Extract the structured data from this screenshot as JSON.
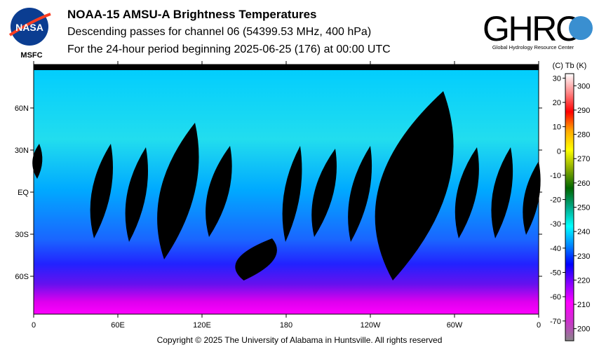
{
  "header": {
    "title": "NOAA-15 AMSU-A Brightness Temperatures",
    "subtitle1": "Descending passes for channel 06 (54399.53 MHz, 400 hPa)",
    "subtitle2": "For the 24-hour period beginning 2025-06-25 (176) at 00:00 UTC"
  },
  "logos": {
    "left": "NASA",
    "left_sub": "MSFC",
    "right": "GHRC",
    "right_sub": "Global Hydrology Resource Center"
  },
  "footer": {
    "copyright": "Copyright © 2025 The University of Alabama in Huntsville.  All rights reserved"
  },
  "chart_data": {
    "type": "heatmap",
    "title": "NOAA-15 AMSU-A Brightness Temperatures",
    "x_ticks": [
      "0",
      "60E",
      "120E",
      "180",
      "120W",
      "60W",
      "0"
    ],
    "y_ticks": [
      "60N",
      "30N",
      "EQ",
      "30S",
      "60S"
    ],
    "colorbar": {
      "label": "(C)  Tb  (K)",
      "celsius_ticks": [
        30,
        20,
        10,
        0,
        -10,
        -20,
        -30,
        -40,
        -50,
        -60,
        -70
      ],
      "kelvin_ticks": [
        300,
        290,
        280,
        270,
        260,
        250,
        240,
        230,
        220,
        210,
        200
      ],
      "range_K": [
        195,
        305
      ],
      "colors": [
        "#888888",
        "#cc33cc",
        "#ff00ff",
        "#8800ff",
        "#0000ff",
        "#0088ff",
        "#00ffff",
        "#00aa88",
        "#006600",
        "#88aa00",
        "#ffff00",
        "#ffaa00",
        "#ff0000",
        "#ff8888",
        "#ffffff"
      ]
    }
  }
}
